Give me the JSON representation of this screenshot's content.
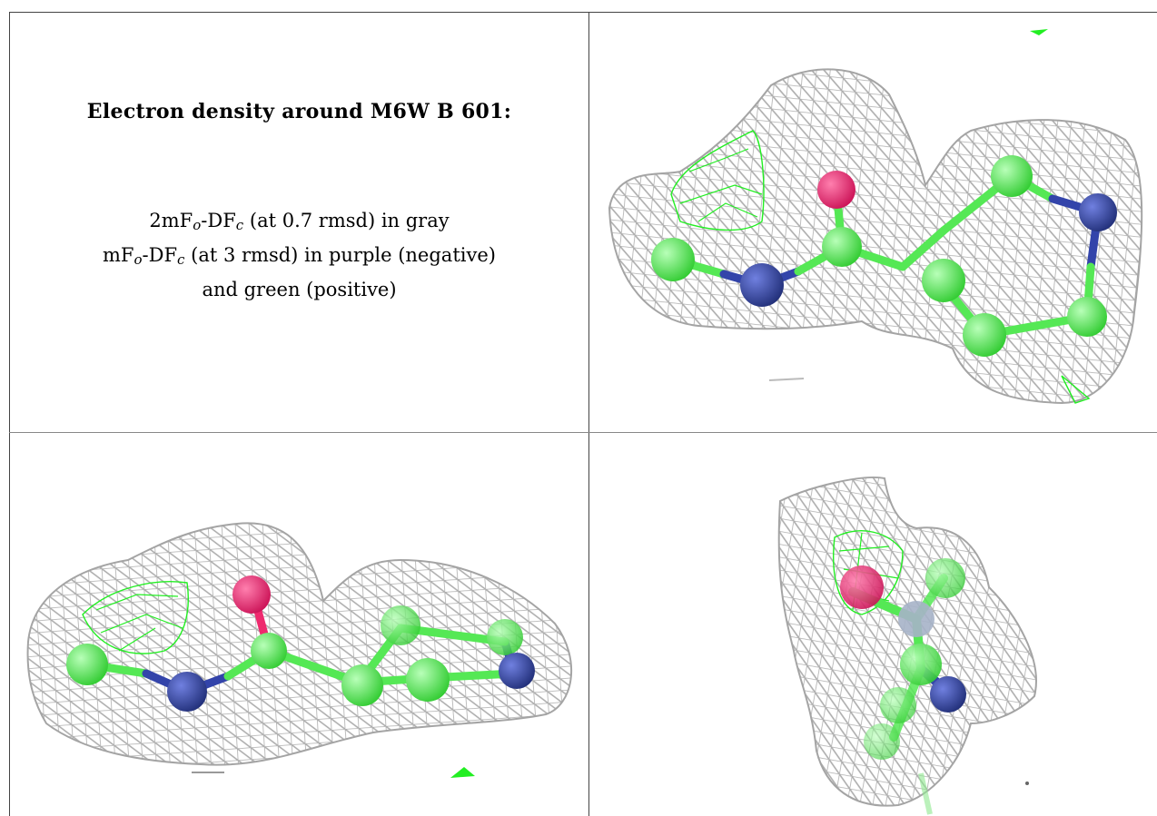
{
  "legend": {
    "title": "Electron density around M6W B 601:",
    "line1": {
      "a": "2mF",
      "a_sub": "o",
      "b": "-DF",
      "b_sub": "c",
      "rest": " (at 0.7 rmsd) in gray"
    },
    "line2": {
      "a": "mF",
      "a_sub": "o",
      "b": "-DF",
      "b_sub": "c",
      "rest": " (at 3 rmsd) in purple (negative)"
    },
    "line3": "and green (positive)"
  },
  "colors": {
    "mesh_gray": "#a8a8a8",
    "positive_green": "#22ee22",
    "carbon": "#55e855",
    "nitrogen": "#3344aa",
    "oxygen": "#ee2a6e",
    "border": "#444444"
  },
  "panels": [
    {
      "name": "view-1",
      "icon": "molecule-density-view-icon"
    },
    {
      "name": "view-2",
      "icon": "molecule-density-view-icon"
    },
    {
      "name": "view-3",
      "icon": "molecule-density-view-icon"
    }
  ]
}
